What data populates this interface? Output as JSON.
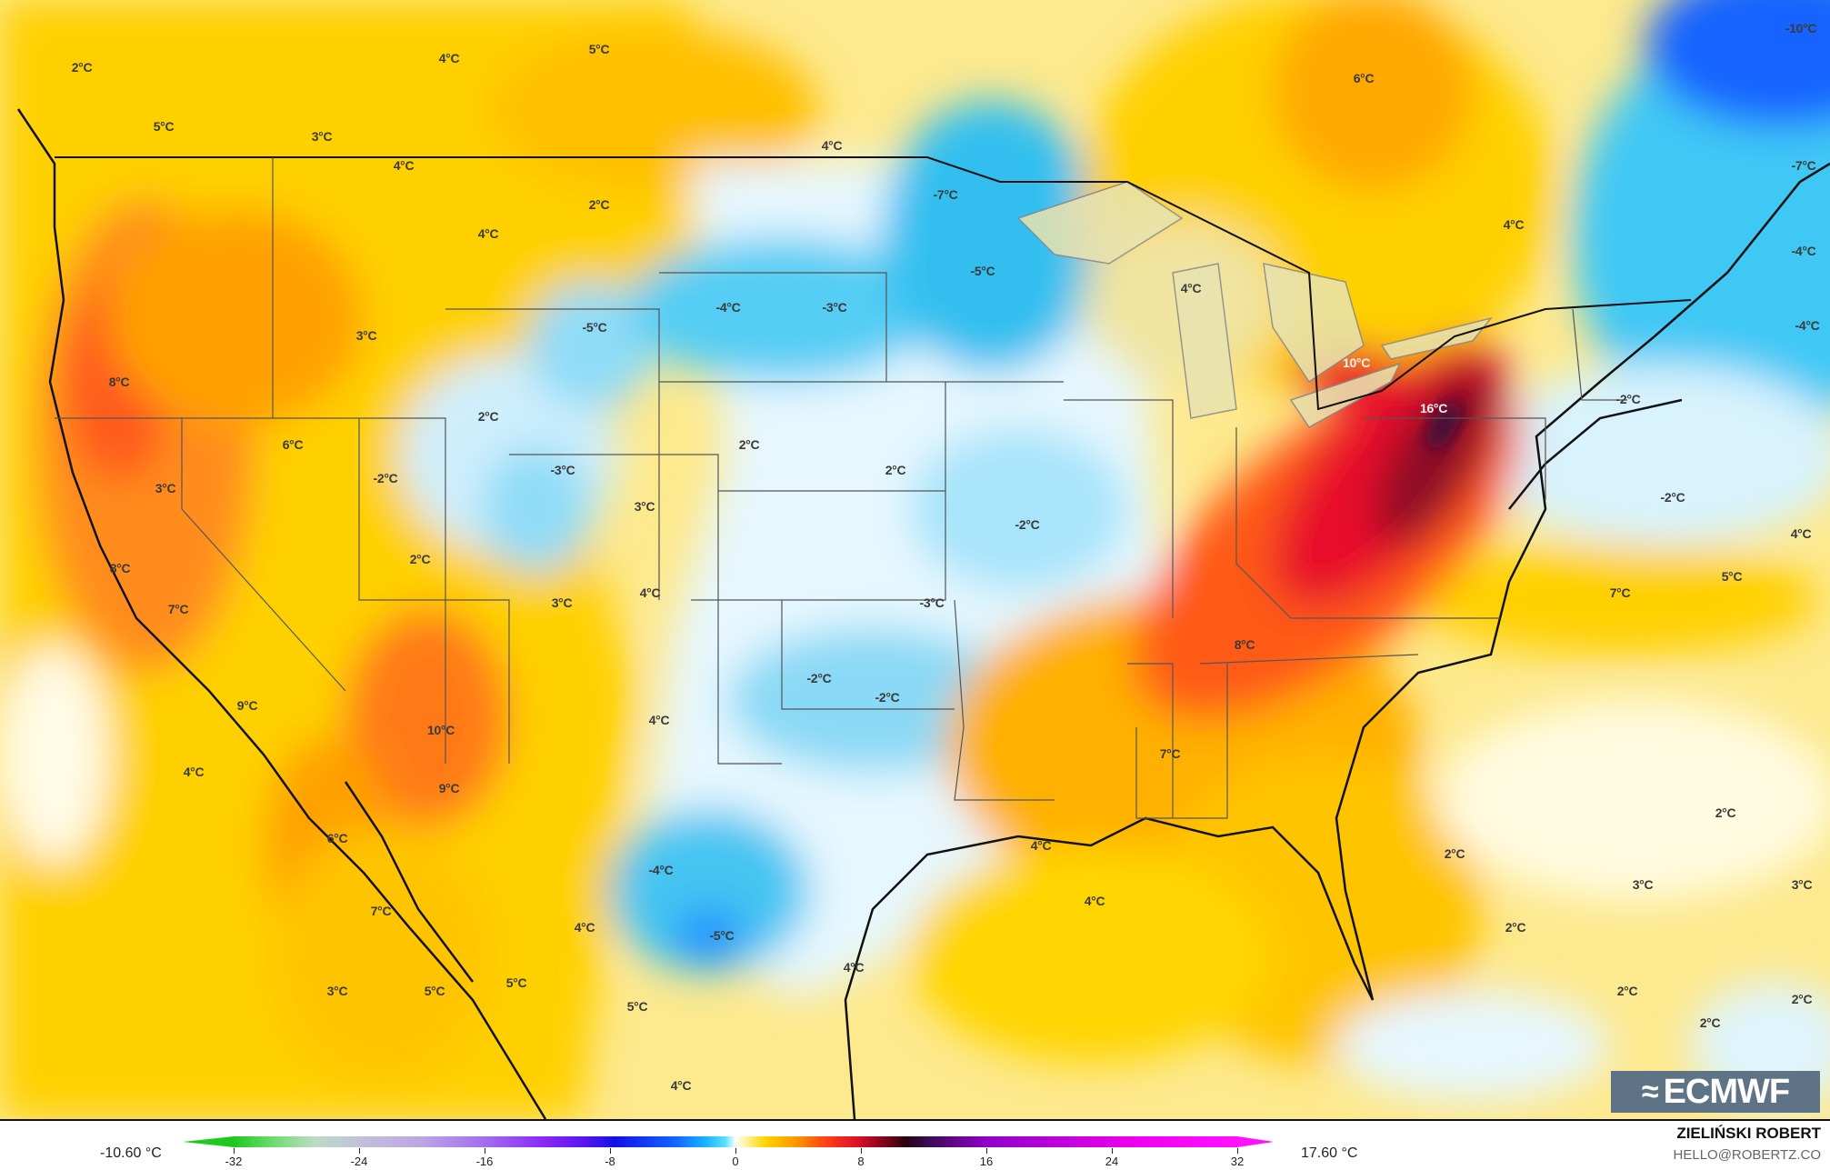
{
  "map": {
    "labels": [
      "2°C",
      "4°C",
      "5°C",
      "5°C",
      "3°C",
      "4°C",
      "6°C",
      "-10°C",
      "4°C",
      "2°C",
      "4°C",
      "-7°C",
      "-5°C",
      "4°C",
      "-7°C",
      "-4°C",
      "4°C",
      "-4°C",
      "-3°C",
      "-5°C",
      "3°C",
      "-4°C",
      "8°C",
      "10°C",
      "16°C",
      "2°C",
      "-2°C",
      "6°C",
      "2°C",
      "-2°C",
      "-3°C",
      "2°C",
      "3°C",
      "3°C",
      "-2°C",
      "-2°C",
      "4°C",
      "2°C",
      "8°C",
      "5°C",
      "7°C",
      "3°C",
      "4°C",
      "-3°C",
      "7°C",
      "8°C",
      "-2°C",
      "-2°C",
      "9°C",
      "4°C",
      "10°C",
      "7°C",
      "4°C",
      "9°C",
      "2°C",
      "4°C",
      "2°C",
      "6°C",
      "-4°C",
      "3°C",
      "3°C",
      "4°C",
      "7°C",
      "4°C",
      "2°C",
      "-5°C",
      "4°C",
      "3°C",
      "5°C",
      "5°C",
      "5°C",
      "2°C",
      "2°C",
      "2°C",
      "4°C"
    ],
    "logo_text": "ECMWF"
  },
  "legend": {
    "min_value": "-10.60 °C",
    "max_value": "17.60 °C",
    "ticks": [
      "-32",
      "-24",
      "-16",
      "-8",
      "0",
      "8",
      "16",
      "24",
      "32"
    ],
    "range": [
      -32,
      32
    ]
  },
  "credits": {
    "author": "ZIELIŃSKI ROBERT",
    "email": "HELLO@ROBERTZ.CO"
  },
  "colors": {
    "cold": "#33c4f2",
    "neutral": "#ffffff",
    "warm": "#ffd500",
    "hot": "#e01028",
    "extreme": "#3a0a3a"
  }
}
